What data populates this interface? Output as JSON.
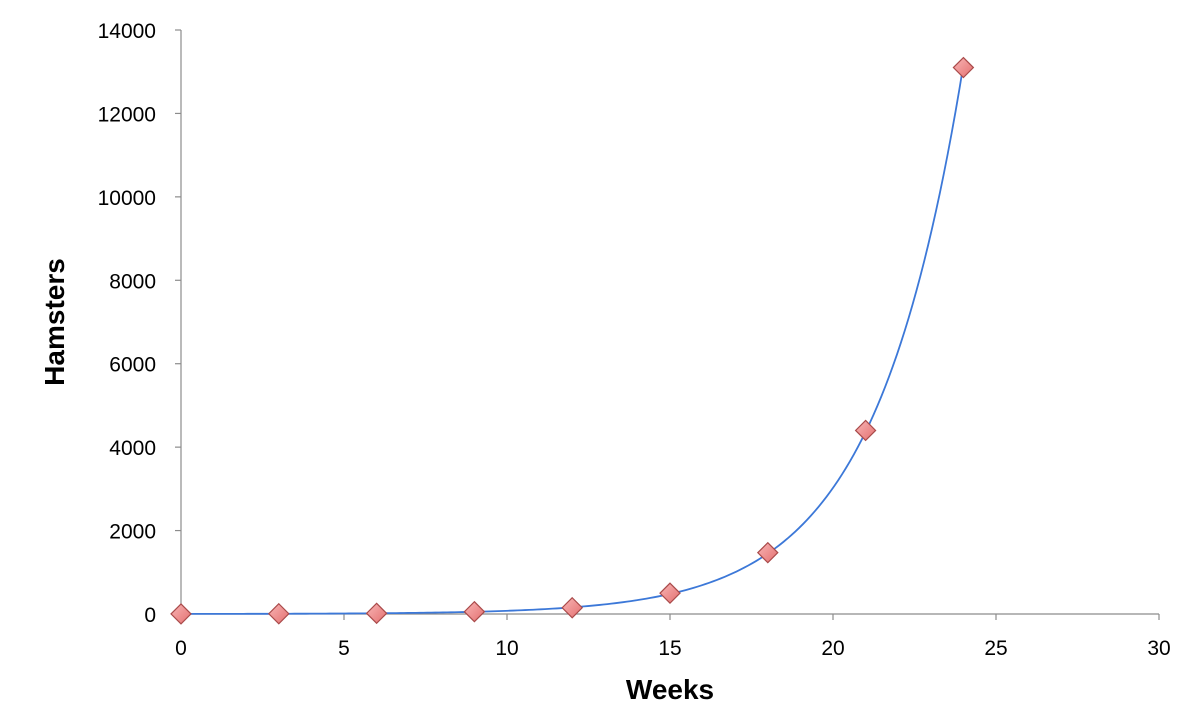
{
  "chart_data": {
    "type": "scatter",
    "title": "",
    "xlabel": "Weeks",
    "ylabel": "Hamsters",
    "xlim": [
      0,
      30
    ],
    "ylim": [
      0,
      14000
    ],
    "x_ticks": [
      0,
      5,
      10,
      15,
      20,
      25,
      30
    ],
    "y_ticks": [
      0,
      2000,
      4000,
      6000,
      8000,
      10000,
      12000,
      14000
    ],
    "grid": false,
    "legend": "none",
    "series": [
      {
        "x": [
          0,
          3,
          6,
          9,
          12,
          15,
          18,
          21,
          24
        ],
        "y": [
          2,
          6,
          16,
          55,
          150,
          500,
          1470,
          4400,
          13100
        ],
        "marker": "diamond",
        "marker_color": "#f08a8a"
      }
    ],
    "trendline": {
      "type": "exponential",
      "color": "#3c78d8"
    }
  }
}
